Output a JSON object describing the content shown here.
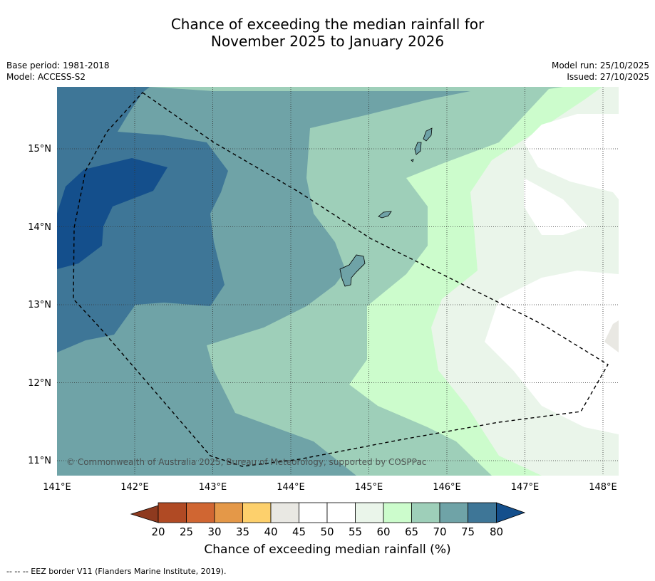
{
  "title": {
    "line1": "Chance of exceeding the median rainfall for",
    "line2": "November 2025 to January 2026"
  },
  "meta": {
    "base_period": "Base period: 1981-2018",
    "model": "Model: ACCESS-S2",
    "model_run": "Model run: 25/10/2025",
    "issued": "Issued: 27/10/2025"
  },
  "map": {
    "lon_ticks": [
      "141°E",
      "142°E",
      "143°E",
      "144°E",
      "145°E",
      "146°E",
      "147°E",
      "148°E"
    ],
    "lat_ticks": [
      "15°N",
      "14°N",
      "13°N",
      "12°N",
      "11°N"
    ],
    "copyright": "© Commonwealth of Australia 2025, Bureau of Meteorology, supported by COSPPac"
  },
  "colorbar": {
    "title": "Chance of exceeding median rainfall (%)",
    "tick_labels": [
      "20",
      "25",
      "30",
      "35",
      "40",
      "45",
      "50",
      "55",
      "60",
      "65",
      "70",
      "75",
      "80"
    ],
    "colors": {
      "below20": "#8e3a1f",
      "c20_25": "#b04a24",
      "c25_30": "#d06632",
      "c30_35": "#e49848",
      "c35_40": "#fdd06c",
      "c40_45": "#e9e8e3",
      "c45_50": "#ffffff",
      "c50_55": "#ffffff",
      "c55_60": "#eaf5ea",
      "c60_65": "#ccfccc",
      "c65_70": "#9ecfb9",
      "c70_75": "#6fa3a7",
      "c75_80": "#3e7697",
      "above80": "#144f8c"
    }
  },
  "footnote": "--  --  -- EEZ border V11 (Flanders Marine Institute, 2019)."
}
